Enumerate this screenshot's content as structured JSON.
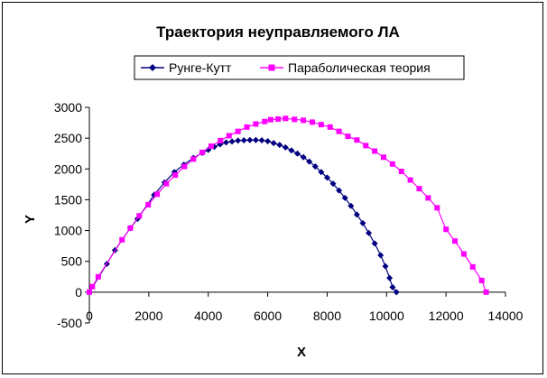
{
  "chart_data": {
    "type": "scatter",
    "title": "Траектория неуправляемого ЛА",
    "xlabel": "X",
    "ylabel": "Y",
    "xlim": [
      0,
      14000
    ],
    "ylim": [
      -500,
      3000
    ],
    "xticks": [
      "0",
      "2000",
      "4000",
      "6000",
      "8000",
      "10000",
      "12000",
      "14000"
    ],
    "yticks": [
      "-500",
      "0",
      "500",
      "1000",
      "1500",
      "2000",
      "2500",
      "3000"
    ],
    "grid": false,
    "legend_position": "top",
    "series": [
      {
        "name": "Рунге-Кутт",
        "color": "#000080",
        "marker": "diamond",
        "points": [
          [
            0,
            0
          ],
          [
            590,
            460
          ],
          [
            860,
            680
          ],
          [
            1380,
            1040
          ],
          [
            1620,
            1190
          ],
          [
            2180,
            1580
          ],
          [
            2530,
            1780
          ],
          [
            2860,
            1950
          ],
          [
            3180,
            2070
          ],
          [
            3500,
            2180
          ],
          [
            3800,
            2260
          ],
          [
            4000,
            2310
          ],
          [
            4200,
            2360
          ],
          [
            4400,
            2400
          ],
          [
            4600,
            2430
          ],
          [
            4800,
            2445
          ],
          [
            5000,
            2460
          ],
          [
            5200,
            2465
          ],
          [
            5400,
            2470
          ],
          [
            5600,
            2470
          ],
          [
            5800,
            2465
          ],
          [
            6000,
            2450
          ],
          [
            6200,
            2420
          ],
          [
            6400,
            2390
          ],
          [
            6600,
            2350
          ],
          [
            6800,
            2300
          ],
          [
            7000,
            2250
          ],
          [
            7200,
            2190
          ],
          [
            7400,
            2120
          ],
          [
            7600,
            2040
          ],
          [
            7800,
            1950
          ],
          [
            8000,
            1860
          ],
          [
            8200,
            1760
          ],
          [
            8400,
            1650
          ],
          [
            8600,
            1530
          ],
          [
            8800,
            1400
          ],
          [
            9000,
            1260
          ],
          [
            9200,
            1120
          ],
          [
            9400,
            960
          ],
          [
            9600,
            790
          ],
          [
            9800,
            600
          ],
          [
            9960,
            420
          ],
          [
            10100,
            230
          ],
          [
            10200,
            80
          ],
          [
            10330,
            0
          ]
        ]
      },
      {
        "name": "Параболическая теория",
        "color": "#FF00FF",
        "marker": "square",
        "points": [
          [
            0,
            0
          ],
          [
            100,
            90
          ],
          [
            300,
            250
          ],
          [
            1100,
            850
          ],
          [
            1380,
            1040
          ],
          [
            1680,
            1240
          ],
          [
            1980,
            1420
          ],
          [
            2280,
            1590
          ],
          [
            2590,
            1760
          ],
          [
            2890,
            1900
          ],
          [
            3200,
            2040
          ],
          [
            3500,
            2160
          ],
          [
            3800,
            2270
          ],
          [
            4100,
            2370
          ],
          [
            4410,
            2460
          ],
          [
            4700,
            2540
          ],
          [
            5000,
            2610
          ],
          [
            5300,
            2680
          ],
          [
            5600,
            2730
          ],
          [
            5900,
            2770
          ],
          [
            6100,
            2800
          ],
          [
            6350,
            2810
          ],
          [
            6600,
            2820
          ],
          [
            6900,
            2805
          ],
          [
            7200,
            2790
          ],
          [
            7500,
            2760
          ],
          [
            7800,
            2720
          ],
          [
            8100,
            2680
          ],
          [
            8400,
            2610
          ],
          [
            8700,
            2530
          ],
          [
            9000,
            2470
          ],
          [
            9300,
            2380
          ],
          [
            9600,
            2290
          ],
          [
            9900,
            2190
          ],
          [
            10200,
            2080
          ],
          [
            10500,
            1960
          ],
          [
            10800,
            1820
          ],
          [
            11100,
            1680
          ],
          [
            11400,
            1530
          ],
          [
            11700,
            1370
          ],
          [
            12000,
            1020
          ],
          [
            12300,
            830
          ],
          [
            12600,
            620
          ],
          [
            12900,
            410
          ],
          [
            13200,
            190
          ],
          [
            13350,
            0
          ]
        ]
      }
    ]
  }
}
